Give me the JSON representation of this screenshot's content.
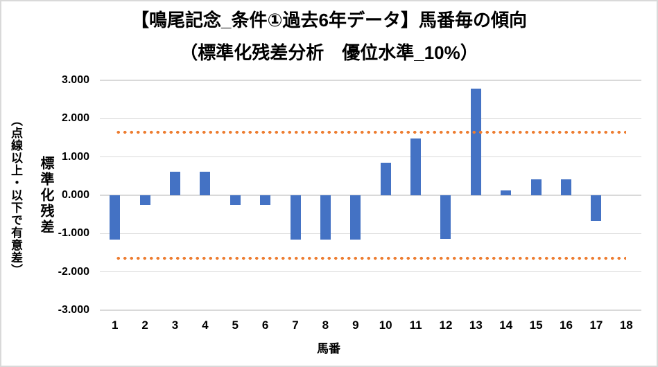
{
  "title": {
    "line1": "【鳴尾記念_条件①過去6年データ】馬番毎の傾向",
    "line2": "（標準化残差分析　優位水準_10%）"
  },
  "y_axis": {
    "title_main": "標準化残差",
    "title_sub": "（点線以上・以下で有意差）"
  },
  "x_axis": {
    "title": "馬番"
  },
  "chart_data": {
    "type": "bar",
    "title": "【鳴尾記念_条件①過去6年データ】馬番毎の傾向（標準化残差分析　優位水準_10%）",
    "xlabel": "馬番",
    "ylabel": "標準化残差（点線以上・以下で有意差）",
    "categories": [
      "1",
      "2",
      "3",
      "4",
      "5",
      "6",
      "7",
      "8",
      "9",
      "10",
      "11",
      "12",
      "13",
      "14",
      "15",
      "16",
      "17",
      "18"
    ],
    "values": [
      -1.16,
      -0.26,
      0.61,
      0.61,
      -0.26,
      -0.26,
      -1.16,
      -1.16,
      -1.16,
      0.85,
      1.49,
      -1.13,
      2.79,
      0.13,
      0.42,
      0.42,
      -0.66,
      0
    ],
    "ylim": [
      -3,
      3
    ],
    "y_ticks": [
      {
        "value": 3,
        "label": "3.000"
      },
      {
        "value": 2,
        "label": "2.000"
      },
      {
        "value": 1,
        "label": "1.000"
      },
      {
        "value": 0,
        "label": "0.000"
      },
      {
        "value": -1,
        "label": "-1.000"
      },
      {
        "value": -2,
        "label": "-2.000"
      },
      {
        "value": -3,
        "label": "-3.000"
      }
    ],
    "reference_lines": [
      {
        "name": "upper-significance-threshold",
        "value": 1.645
      },
      {
        "name": "lower-significance-threshold",
        "value": -1.645
      }
    ],
    "grid": true,
    "legend": "none",
    "bar_color": "#4472C4",
    "reference_line_color": "#ED7D31",
    "gridline_color": "#D9D9D9"
  }
}
